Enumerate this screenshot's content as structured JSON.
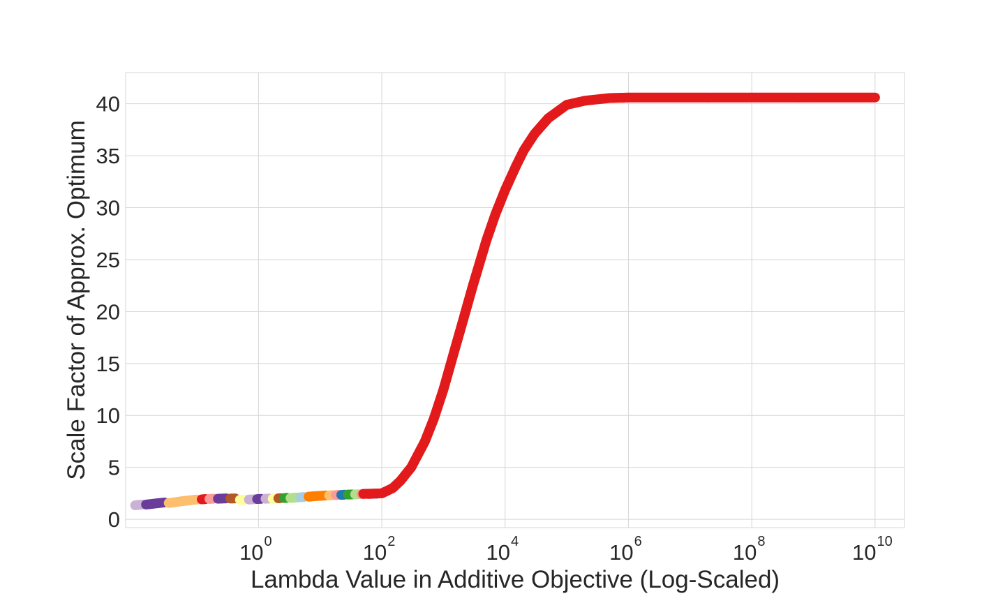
{
  "chart_data": {
    "type": "scatter",
    "title": "",
    "xlabel": "Lambda Value in Additive Objective (Log-Scaled)",
    "ylabel": "Scale Factor of Approx. Optimum",
    "xscale": "log",
    "xlim": [
      0.007,
      30000000000
    ],
    "ylim": [
      -0.8,
      43
    ],
    "grid": true,
    "legend": "none",
    "x_ticks": [
      {
        "base": "10",
        "exp": "0",
        "value": 1
      },
      {
        "base": "10",
        "exp": "2",
        "value": 100
      },
      {
        "base": "10",
        "exp": "4",
        "value": 10000
      },
      {
        "base": "10",
        "exp": "6",
        "value": 1000000
      },
      {
        "base": "10",
        "exp": "8",
        "value": 100000000
      },
      {
        "base": "10",
        "exp": "10",
        "value": 10000000000
      }
    ],
    "y_ticks": [
      {
        "label": "0",
        "value": 0
      },
      {
        "label": "5",
        "value": 5
      },
      {
        "label": "10",
        "value": 10
      },
      {
        "label": "15",
        "value": 15
      },
      {
        "label": "20",
        "value": 20
      },
      {
        "label": "25",
        "value": 25
      },
      {
        "label": "30",
        "value": 30
      },
      {
        "label": "35",
        "value": 35
      },
      {
        "label": "40",
        "value": 40
      }
    ],
    "series": [
      {
        "color": "#cab2d6",
        "x": [
          0.01,
          0.011,
          0.012,
          0.013
        ],
        "y": [
          1.35,
          1.38,
          1.4,
          1.42
        ]
      },
      {
        "color": "#6a3d9a",
        "x": [
          0.015,
          0.018,
          0.021,
          0.025,
          0.03
        ],
        "y": [
          1.42,
          1.47,
          1.52,
          1.57,
          1.62
        ]
      },
      {
        "color": "#fdbf6f",
        "x": [
          0.035,
          0.045,
          0.055,
          0.07,
          0.085,
          0.1
        ],
        "y": [
          1.57,
          1.65,
          1.73,
          1.8,
          1.86,
          1.9
        ]
      },
      {
        "color": "#e31a1c",
        "x": [
          0.12,
          0.14
        ],
        "y": [
          1.92,
          1.95
        ]
      },
      {
        "color": "#fb9a99",
        "x": [
          0.16,
          0.19
        ],
        "y": [
          1.96,
          1.99
        ]
      },
      {
        "color": "#6a3d9a",
        "x": [
          0.22,
          0.26,
          0.3
        ],
        "y": [
          1.98,
          2.0,
          2.01
        ]
      },
      {
        "color": "#b15928",
        "x": [
          0.35,
          0.42
        ],
        "y": [
          2.0,
          2.01
        ]
      },
      {
        "color": "#ffff99",
        "x": [
          0.5,
          0.6
        ],
        "y": [
          1.88,
          1.9
        ]
      },
      {
        "color": "#cab2d6",
        "x": [
          0.7,
          0.85
        ],
        "y": [
          1.9,
          1.93
        ]
      },
      {
        "color": "#6a3d9a",
        "x": [
          0.95,
          1.1
        ],
        "y": [
          1.95,
          1.97
        ]
      },
      {
        "color": "#cab2d6",
        "x": [
          1.3,
          1.5
        ],
        "y": [
          1.98,
          2.0
        ]
      },
      {
        "color": "#ffff99",
        "x": [
          1.7,
          1.9
        ],
        "y": [
          1.98,
          2.0
        ]
      },
      {
        "color": "#b15928",
        "x": [
          2.1,
          2.3
        ],
        "y": [
          2.02,
          2.04
        ]
      },
      {
        "color": "#33a02c",
        "x": [
          2.6,
          2.9
        ],
        "y": [
          2.05,
          2.07
        ]
      },
      {
        "color": "#b2df8a",
        "x": [
          3.3,
          3.8,
          4.3
        ],
        "y": [
          2.05,
          2.08,
          2.1
        ]
      },
      {
        "color": "#a6cee3",
        "x": [
          4.8,
          5.5
        ],
        "y": [
          2.12,
          2.15
        ]
      },
      {
        "color": "#ff7f00",
        "x": [
          6.5,
          8,
          10,
          12.5
        ],
        "y": [
          2.18,
          2.22,
          2.26,
          2.3
        ]
      },
      {
        "color": "#fdbf6f",
        "x": [
          14,
          16
        ],
        "y": [
          2.3,
          2.32
        ]
      },
      {
        "color": "#fb9a99",
        "x": [
          18,
          20
        ],
        "y": [
          2.33,
          2.35
        ]
      },
      {
        "color": "#1f78b4",
        "x": [
          22,
          25
        ],
        "y": [
          2.35,
          2.37
        ]
      },
      {
        "color": "#33a02c",
        "x": [
          28,
          33
        ],
        "y": [
          2.38,
          2.39
        ]
      },
      {
        "color": "#b2df8a",
        "x": [
          37,
          42
        ],
        "y": [
          2.4,
          2.41
        ]
      },
      {
        "color": "#fb9a99",
        "x": [
          47,
          54
        ],
        "y": [
          2.42,
          2.43
        ]
      },
      {
        "color": "#e31a1c",
        "x": [
          60,
          70
        ],
        "y": [
          2.44,
          2.45
        ]
      },
      {
        "color": "#1f78b4",
        "x": [
          78,
          85
        ],
        "y": [
          2.46,
          2.47
        ]
      },
      {
        "color": "#e31a1c",
        "x": [
          50,
          100,
          150,
          200,
          300,
          500,
          700,
          1000,
          1500,
          2000,
          3000,
          5000,
          7000,
          10000,
          15000,
          20000,
          30000,
          50000,
          100000,
          200000,
          500000,
          1000000,
          10000000,
          100000000,
          1000000000,
          10000000000
        ],
        "y": [
          2.45,
          2.5,
          3.0,
          3.7,
          5.0,
          7.5,
          9.7,
          12.5,
          16.2,
          18.8,
          22.5,
          26.9,
          29.4,
          31.7,
          34.0,
          35.5,
          37.1,
          38.6,
          39.9,
          40.3,
          40.55,
          40.6,
          40.6,
          40.6,
          40.6,
          40.6
        ]
      }
    ]
  }
}
